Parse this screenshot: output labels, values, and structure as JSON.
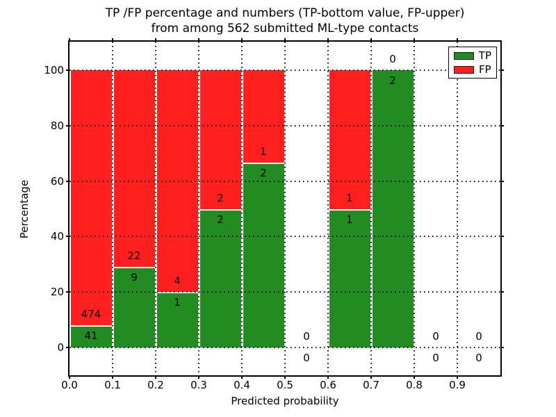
{
  "figure": {
    "title_line1": "TP /FP percentage and numbers (TP-bottom value, FP-upper)",
    "title_line2": "from among 562 submitted ML-type contacts"
  },
  "chart_data": {
    "type": "bar",
    "stacked": true,
    "title": "TP /FP percentage and numbers (TP-bottom value, FP-upper) from among 562 submitted ML-type contacts",
    "xlabel": "Predicted probability",
    "ylabel": "Percentage",
    "xlim": [
      0.0,
      1.0
    ],
    "ylim": [
      -10,
      110
    ],
    "xticks": [
      "0.0",
      "0.1",
      "0.2",
      "0.3",
      "0.4",
      "0.5",
      "0.6",
      "0.7",
      "0.8",
      "0.9"
    ],
    "yticks": [
      "0",
      "20",
      "40",
      "60",
      "80",
      "100"
    ],
    "grid": "dotted, drawn above bars",
    "legend_position": "upper right",
    "total_contacts": 562,
    "bin_width": 0.1,
    "categories": [
      "0.0-0.1",
      "0.1-0.2",
      "0.2-0.3",
      "0.3-0.4",
      "0.4-0.5",
      "0.5-0.6",
      "0.6-0.7",
      "0.7-0.8",
      "0.8-0.9",
      "0.9-1.0"
    ],
    "series": [
      {
        "name": "TP",
        "color": "#228b22",
        "counts": [
          41,
          9,
          1,
          2,
          2,
          0,
          1,
          2,
          0,
          0
        ]
      },
      {
        "name": "FP",
        "color": "#ff1f1f",
        "counts": [
          474,
          22,
          4,
          2,
          1,
          0,
          1,
          0,
          0,
          0
        ]
      }
    ],
    "tp_percent": [
      7.96,
      29.03,
      20.0,
      50.0,
      66.67,
      null,
      50.0,
      100.0,
      null,
      null
    ]
  }
}
